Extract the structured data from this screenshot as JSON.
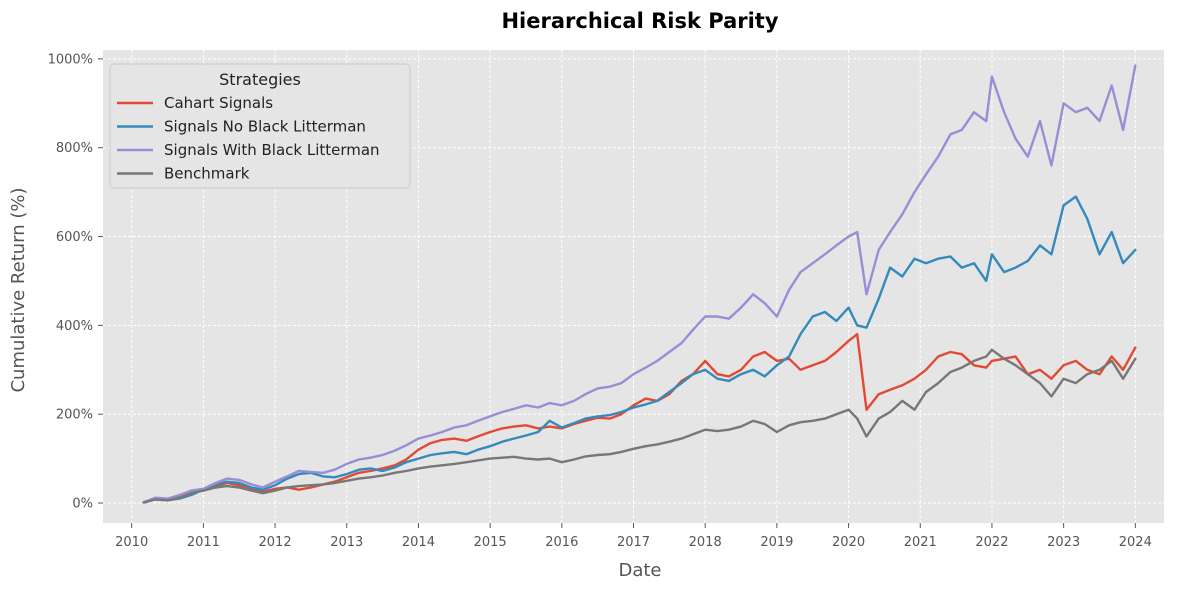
{
  "chart_data": {
    "type": "line",
    "title": "Hierarchical Risk Parity",
    "xlabel": "Date",
    "ylabel": "Cumulative Return (%)",
    "xlim": [
      2009.6,
      2024.4
    ],
    "ylim": [
      -45,
      1020
    ],
    "x_ticks": [
      2010,
      2011,
      2012,
      2013,
      2014,
      2015,
      2016,
      2017,
      2018,
      2019,
      2020,
      2021,
      2022,
      2023,
      2024
    ],
    "x_tick_labels": [
      "2010",
      "2011",
      "2012",
      "2013",
      "2014",
      "2015",
      "2016",
      "2017",
      "2018",
      "2019",
      "2020",
      "2021",
      "2022",
      "2023",
      "2024"
    ],
    "y_ticks": [
      0,
      200,
      400,
      600,
      800,
      1000
    ],
    "y_tick_labels": [
      "0%",
      "200%",
      "400%",
      "600%",
      "800%",
      "1000%"
    ],
    "grid": true,
    "legend": {
      "title": "Strategies",
      "placement": "top-left"
    },
    "x": [
      2010.17,
      2010.33,
      2010.5,
      2010.67,
      2010.83,
      2011.0,
      2011.17,
      2011.33,
      2011.5,
      2011.67,
      2011.83,
      2012.0,
      2012.17,
      2012.33,
      2012.5,
      2012.67,
      2012.83,
      2013.0,
      2013.17,
      2013.33,
      2013.5,
      2013.67,
      2013.83,
      2014.0,
      2014.17,
      2014.33,
      2014.5,
      2014.67,
      2014.83,
      2015.0,
      2015.17,
      2015.33,
      2015.5,
      2015.67,
      2015.83,
      2016.0,
      2016.17,
      2016.33,
      2016.5,
      2016.67,
      2016.83,
      2017.0,
      2017.17,
      2017.33,
      2017.5,
      2017.67,
      2017.83,
      2018.0,
      2018.17,
      2018.33,
      2018.5,
      2018.67,
      2018.83,
      2019.0,
      2019.17,
      2019.33,
      2019.5,
      2019.67,
      2019.83,
      2020.0,
      2020.12,
      2020.25,
      2020.42,
      2020.58,
      2020.75,
      2020.92,
      2021.08,
      2021.25,
      2021.42,
      2021.58,
      2021.75,
      2021.92,
      2022.0,
      2022.17,
      2022.33,
      2022.5,
      2022.67,
      2022.83,
      2023.0,
      2023.17,
      2023.33,
      2023.5,
      2023.67,
      2023.83,
      2024.0
    ],
    "series": [
      {
        "name": "Cahart Signals",
        "color": "#E24A33",
        "values": [
          2,
          10,
          8,
          15,
          25,
          28,
          38,
          45,
          40,
          30,
          25,
          32,
          35,
          30,
          35,
          42,
          48,
          58,
          68,
          72,
          78,
          85,
          98,
          120,
          135,
          142,
          145,
          140,
          150,
          160,
          168,
          172,
          175,
          168,
          172,
          168,
          178,
          185,
          192,
          190,
          200,
          220,
          235,
          230,
          245,
          275,
          290,
          320,
          290,
          285,
          300,
          330,
          340,
          320,
          325,
          300,
          310,
          320,
          340,
          365,
          380,
          210,
          245,
          255,
          265,
          280,
          300,
          330,
          340,
          335,
          310,
          305,
          320,
          325,
          330,
          290,
          300,
          280,
          310,
          320,
          300,
          290,
          330,
          300,
          350
        ]
      },
      {
        "name": "Signals No Black Litterman",
        "color": "#348ABD",
        "values": [
          2,
          10,
          6,
          10,
          18,
          30,
          42,
          48,
          45,
          35,
          30,
          40,
          55,
          65,
          68,
          60,
          58,
          65,
          75,
          78,
          72,
          80,
          92,
          100,
          108,
          112,
          115,
          110,
          120,
          128,
          138,
          145,
          152,
          160,
          185,
          170,
          180,
          190,
          195,
          198,
          205,
          215,
          222,
          230,
          250,
          270,
          290,
          300,
          280,
          275,
          290,
          300,
          285,
          310,
          330,
          380,
          420,
          430,
          410,
          440,
          400,
          395,
          460,
          530,
          510,
          550,
          540,
          550,
          555,
          530,
          540,
          500,
          560,
          520,
          530,
          545,
          580,
          560,
          670,
          690,
          640,
          560,
          610,
          540,
          570
        ]
      },
      {
        "name": "Signals With Black Litterman",
        "color": "#988ED5",
        "values": [
          2,
          12,
          10,
          18,
          28,
          32,
          45,
          55,
          52,
          42,
          35,
          48,
          60,
          72,
          70,
          68,
          75,
          88,
          98,
          102,
          108,
          118,
          130,
          145,
          152,
          160,
          170,
          175,
          185,
          195,
          205,
          212,
          220,
          215,
          225,
          220,
          230,
          245,
          258,
          262,
          270,
          290,
          305,
          320,
          340,
          360,
          390,
          420,
          420,
          415,
          440,
          470,
          450,
          420,
          480,
          520,
          540,
          560,
          580,
          600,
          610,
          470,
          570,
          610,
          650,
          700,
          740,
          780,
          830,
          840,
          880,
          860,
          960,
          880,
          820,
          780,
          860,
          760,
          900,
          880,
          890,
          860,
          940,
          840,
          985
        ]
      },
      {
        "name": "Benchmark",
        "color": "#777777",
        "values": [
          1,
          8,
          6,
          12,
          22,
          28,
          35,
          38,
          35,
          28,
          22,
          28,
          35,
          38,
          40,
          42,
          45,
          50,
          55,
          58,
          62,
          68,
          72,
          78,
          82,
          85,
          88,
          92,
          96,
          100,
          102,
          104,
          100,
          98,
          100,
          92,
          98,
          105,
          108,
          110,
          115,
          122,
          128,
          132,
          138,
          145,
          155,
          165,
          162,
          165,
          172,
          185,
          178,
          160,
          175,
          182,
          185,
          190,
          200,
          210,
          190,
          150,
          190,
          205,
          230,
          210,
          250,
          270,
          295,
          305,
          320,
          330,
          345,
          325,
          310,
          290,
          270,
          240,
          280,
          270,
          290,
          300,
          320,
          280,
          325
        ]
      }
    ]
  }
}
